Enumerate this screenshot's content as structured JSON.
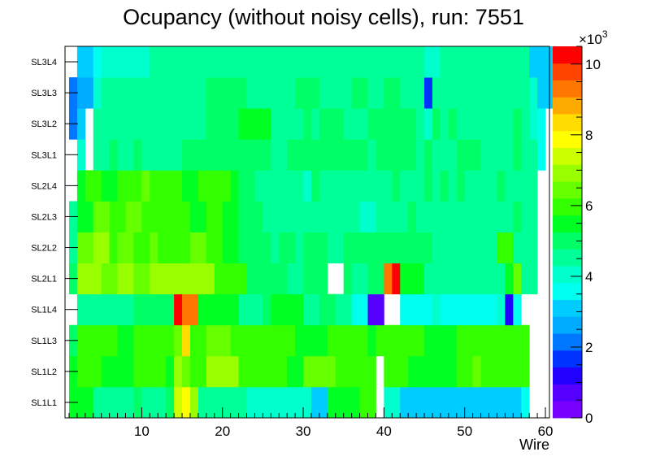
{
  "chart_data": {
    "type": "heatmap",
    "title": "Ocupancy (without noisy cells), run: 7551",
    "xlabel": "Wire",
    "ylabel": "",
    "xlim": [
      0.5,
      60.5
    ],
    "x_ticks": [
      10,
      20,
      30,
      40,
      50,
      60
    ],
    "y_categories": [
      "SL1L1",
      "SL1L2",
      "SL1L3",
      "SL1L4",
      "SL2L1",
      "SL2L2",
      "SL2L3",
      "SL2L4",
      "SL3L1",
      "SL3L2",
      "SL3L3",
      "SL3L4"
    ],
    "colorbar": {
      "min": 0,
      "max": 10500,
      "multiplier_label": "×10",
      "multiplier_exponent": "3",
      "tick_values": [
        0,
        2000,
        4000,
        6000,
        8000,
        10000
      ],
      "tick_labels": [
        "0",
        "2",
        "4",
        "6",
        "8",
        "10"
      ]
    },
    "rows": [
      {
        "label": "SL1L1",
        "segments": [
          [
            1,
            3,
            5400
          ],
          [
            4,
            8,
            4600
          ],
          [
            9,
            9,
            5000
          ],
          [
            10,
            12,
            4600
          ],
          [
            13,
            13,
            5000
          ],
          [
            14,
            14,
            7300
          ],
          [
            15,
            15,
            8000
          ],
          [
            16,
            16,
            6800
          ],
          [
            17,
            22,
            4300
          ],
          [
            23,
            30,
            3900
          ],
          [
            31,
            32,
            3000
          ],
          [
            33,
            36,
            5600
          ],
          [
            37,
            38,
            5900
          ],
          [
            39,
            39,
            0
          ],
          [
            40,
            41,
            3900
          ],
          [
            42,
            56,
            3000
          ],
          [
            57,
            57,
            3800
          ]
        ]
      },
      {
        "label": "SL1L2",
        "segments": [
          [
            1,
            1,
            5600
          ],
          [
            2,
            4,
            5900
          ],
          [
            5,
            8,
            5600
          ],
          [
            9,
            12,
            5900
          ],
          [
            13,
            13,
            5600
          ],
          [
            14,
            14,
            7000
          ],
          [
            15,
            15,
            6400
          ],
          [
            16,
            17,
            5800
          ],
          [
            18,
            21,
            6700
          ],
          [
            22,
            27,
            5900
          ],
          [
            28,
            29,
            5600
          ],
          [
            30,
            33,
            6400
          ],
          [
            34,
            38,
            5900
          ],
          [
            39,
            39,
            0
          ],
          [
            40,
            42,
            5900
          ],
          [
            43,
            48,
            5600
          ],
          [
            49,
            50,
            5900
          ],
          [
            51,
            51,
            6400
          ],
          [
            52,
            57,
            5900
          ]
        ]
      },
      {
        "label": "SL1L3",
        "segments": [
          [
            1,
            1,
            5000
          ],
          [
            2,
            6,
            5800
          ],
          [
            7,
            8,
            5500
          ],
          [
            9,
            13,
            5800
          ],
          [
            14,
            14,
            6600
          ],
          [
            15,
            15,
            8300
          ],
          [
            16,
            17,
            5800
          ],
          [
            18,
            20,
            6500
          ],
          [
            21,
            28,
            5900
          ],
          [
            29,
            32,
            5600
          ],
          [
            33,
            37,
            5900
          ],
          [
            38,
            38,
            5600
          ],
          [
            39,
            44,
            5900
          ],
          [
            45,
            48,
            5600
          ],
          [
            49,
            57,
            5900
          ]
        ]
      },
      {
        "label": "SL1L4",
        "segments": [
          [
            1,
            1,
            0
          ],
          [
            2,
            8,
            4700
          ],
          [
            9,
            11,
            5200
          ],
          [
            12,
            13,
            4900
          ],
          [
            14,
            14,
            10400
          ],
          [
            15,
            16,
            9300
          ],
          [
            17,
            21,
            5400
          ],
          [
            22,
            24,
            4700
          ],
          [
            25,
            25,
            5200
          ],
          [
            26,
            29,
            5400
          ],
          [
            30,
            31,
            4500
          ],
          [
            32,
            33,
            5200
          ],
          [
            34,
            35,
            4600
          ],
          [
            36,
            37,
            3700
          ],
          [
            38,
            39,
            800
          ],
          [
            40,
            41,
            0
          ],
          [
            42,
            45,
            3800
          ],
          [
            46,
            46,
            4200
          ],
          [
            47,
            53,
            3800
          ],
          [
            54,
            54,
            4200
          ],
          [
            55,
            55,
            1000
          ],
          [
            56,
            56,
            3800
          ],
          [
            57,
            57,
            0
          ]
        ]
      },
      {
        "label": "SL2L1",
        "segments": [
          [
            1,
            1,
            5200
          ],
          [
            2,
            4,
            6800
          ],
          [
            5,
            6,
            6400
          ],
          [
            7,
            8,
            6800
          ],
          [
            9,
            10,
            6400
          ],
          [
            11,
            18,
            6800
          ],
          [
            19,
            22,
            5900
          ],
          [
            23,
            25,
            5200
          ],
          [
            26,
            27,
            5000
          ],
          [
            28,
            29,
            4600
          ],
          [
            30,
            32,
            4800
          ],
          [
            33,
            34,
            0
          ],
          [
            35,
            35,
            5000
          ],
          [
            36,
            37,
            4600
          ],
          [
            38,
            39,
            4800
          ],
          [
            40,
            40,
            9300
          ],
          [
            41,
            41,
            10400
          ],
          [
            42,
            44,
            5600
          ],
          [
            45,
            54,
            4600
          ],
          [
            55,
            55,
            5600
          ],
          [
            56,
            56,
            6400
          ],
          [
            57,
            58,
            4700
          ],
          [
            59,
            60,
            0
          ]
        ]
      },
      {
        "label": "SL2L2",
        "segments": [
          [
            1,
            1,
            4700
          ],
          [
            2,
            3,
            6400
          ],
          [
            4,
            5,
            6800
          ],
          [
            6,
            6,
            5900
          ],
          [
            7,
            8,
            6400
          ],
          [
            9,
            10,
            5900
          ],
          [
            11,
            11,
            6400
          ],
          [
            12,
            15,
            5900
          ],
          [
            16,
            17,
            6400
          ],
          [
            18,
            19,
            5900
          ],
          [
            20,
            21,
            5600
          ],
          [
            22,
            25,
            5000
          ],
          [
            26,
            26,
            4600
          ],
          [
            27,
            28,
            5000
          ],
          [
            29,
            29,
            4600
          ],
          [
            30,
            32,
            5000
          ],
          [
            33,
            34,
            4600
          ],
          [
            35,
            40,
            4900
          ],
          [
            41,
            42,
            5200
          ],
          [
            43,
            45,
            5000
          ],
          [
            46,
            46,
            4600
          ],
          [
            47,
            53,
            4700
          ],
          [
            54,
            54,
            5900
          ],
          [
            55,
            55,
            6000
          ],
          [
            56,
            56,
            4700
          ],
          [
            57,
            58,
            4600
          ],
          [
            59,
            60,
            0
          ]
        ]
      },
      {
        "label": "SL2L3",
        "segments": [
          [
            1,
            1,
            4600
          ],
          [
            2,
            3,
            5600
          ],
          [
            4,
            5,
            6400
          ],
          [
            6,
            7,
            5900
          ],
          [
            8,
            9,
            6400
          ],
          [
            10,
            15,
            5900
          ],
          [
            16,
            17,
            5600
          ],
          [
            18,
            19,
            5900
          ],
          [
            20,
            21,
            5600
          ],
          [
            22,
            24,
            5200
          ],
          [
            25,
            36,
            4600
          ],
          [
            37,
            38,
            4200
          ],
          [
            39,
            42,
            4600
          ],
          [
            43,
            43,
            5200
          ],
          [
            44,
            45,
            4600
          ],
          [
            46,
            55,
            4600
          ],
          [
            56,
            56,
            5200
          ],
          [
            57,
            58,
            4600
          ],
          [
            59,
            60,
            0
          ]
        ]
      },
      {
        "label": "SL2L4",
        "segments": [
          [
            1,
            1,
            0
          ],
          [
            2,
            2,
            5600
          ],
          [
            3,
            4,
            5900
          ],
          [
            5,
            6,
            5600
          ],
          [
            7,
            9,
            5900
          ],
          [
            10,
            10,
            6400
          ],
          [
            11,
            14,
            5900
          ],
          [
            15,
            16,
            5600
          ],
          [
            17,
            20,
            5900
          ],
          [
            21,
            21,
            5600
          ],
          [
            22,
            23,
            5200
          ],
          [
            24,
            29,
            4700
          ],
          [
            30,
            30,
            4200
          ],
          [
            31,
            31,
            5200
          ],
          [
            32,
            36,
            4700
          ],
          [
            37,
            40,
            4600
          ],
          [
            41,
            41,
            5200
          ],
          [
            42,
            44,
            4700
          ],
          [
            45,
            45,
            5200
          ],
          [
            46,
            46,
            4700
          ],
          [
            47,
            47,
            5200
          ],
          [
            48,
            48,
            4700
          ],
          [
            49,
            49,
            5200
          ],
          [
            50,
            53,
            4700
          ],
          [
            54,
            54,
            5200
          ],
          [
            55,
            56,
            4700
          ],
          [
            57,
            58,
            4600
          ],
          [
            59,
            60,
            0
          ]
        ]
      },
      {
        "label": "SL3L1",
        "segments": [
          [
            1,
            1,
            0
          ],
          [
            2,
            2,
            4000
          ],
          [
            3,
            3,
            0
          ],
          [
            4,
            5,
            4600
          ],
          [
            6,
            6,
            5200
          ],
          [
            7,
            8,
            4600
          ],
          [
            9,
            9,
            5200
          ],
          [
            10,
            14,
            4600
          ],
          [
            15,
            15,
            5200
          ],
          [
            16,
            25,
            5000
          ],
          [
            26,
            27,
            4600
          ],
          [
            28,
            37,
            5000
          ],
          [
            38,
            38,
            4600
          ],
          [
            39,
            43,
            5000
          ],
          [
            44,
            44,
            4600
          ],
          [
            45,
            45,
            5000
          ],
          [
            46,
            48,
            4600
          ],
          [
            49,
            51,
            5000
          ],
          [
            52,
            55,
            4600
          ],
          [
            56,
            56,
            5000
          ],
          [
            57,
            58,
            4600
          ],
          [
            59,
            59,
            3800
          ],
          [
            60,
            60,
            0
          ]
        ]
      },
      {
        "label": "SL3L2",
        "segments": [
          [
            1,
            1,
            2000
          ],
          [
            2,
            2,
            3000
          ],
          [
            3,
            3,
            0
          ],
          [
            4,
            17,
            4600
          ],
          [
            18,
            21,
            5000
          ],
          [
            22,
            25,
            5400
          ],
          [
            26,
            29,
            4600
          ],
          [
            30,
            30,
            5000
          ],
          [
            31,
            31,
            4600
          ],
          [
            32,
            34,
            5000
          ],
          [
            35,
            37,
            4600
          ],
          [
            38,
            43,
            5000
          ],
          [
            44,
            44,
            4600
          ],
          [
            45,
            45,
            4000
          ],
          [
            46,
            46,
            5000
          ],
          [
            47,
            47,
            4600
          ],
          [
            48,
            48,
            5000
          ],
          [
            49,
            54,
            4600
          ],
          [
            55,
            55,
            4600
          ],
          [
            56,
            56,
            5000
          ],
          [
            57,
            57,
            4600
          ],
          [
            58,
            58,
            4000
          ],
          [
            59,
            59,
            3800
          ],
          [
            60,
            60,
            0
          ]
        ]
      },
      {
        "label": "SL3L3",
        "segments": [
          [
            1,
            1,
            2000
          ],
          [
            2,
            3,
            2800
          ],
          [
            4,
            4,
            4000
          ],
          [
            5,
            17,
            4600
          ],
          [
            18,
            22,
            5200
          ],
          [
            23,
            28,
            4600
          ],
          [
            29,
            31,
            5200
          ],
          [
            32,
            35,
            4600
          ],
          [
            36,
            37,
            5000
          ],
          [
            38,
            39,
            4600
          ],
          [
            40,
            41,
            5000
          ],
          [
            42,
            44,
            4600
          ],
          [
            45,
            45,
            1500
          ],
          [
            46,
            55,
            4600
          ],
          [
            56,
            57,
            4600
          ],
          [
            58,
            58,
            4000
          ],
          [
            59,
            60,
            3000
          ]
        ]
      },
      {
        "label": "SL3L4",
        "segments": [
          [
            1,
            1,
            0
          ],
          [
            2,
            3,
            3300
          ],
          [
            4,
            4,
            3800
          ],
          [
            5,
            7,
            4200
          ],
          [
            8,
            9,
            4000
          ],
          [
            10,
            10,
            4200
          ],
          [
            11,
            44,
            4600
          ],
          [
            45,
            46,
            4000
          ],
          [
            47,
            57,
            4600
          ],
          [
            58,
            60,
            3000
          ]
        ]
      }
    ]
  }
}
